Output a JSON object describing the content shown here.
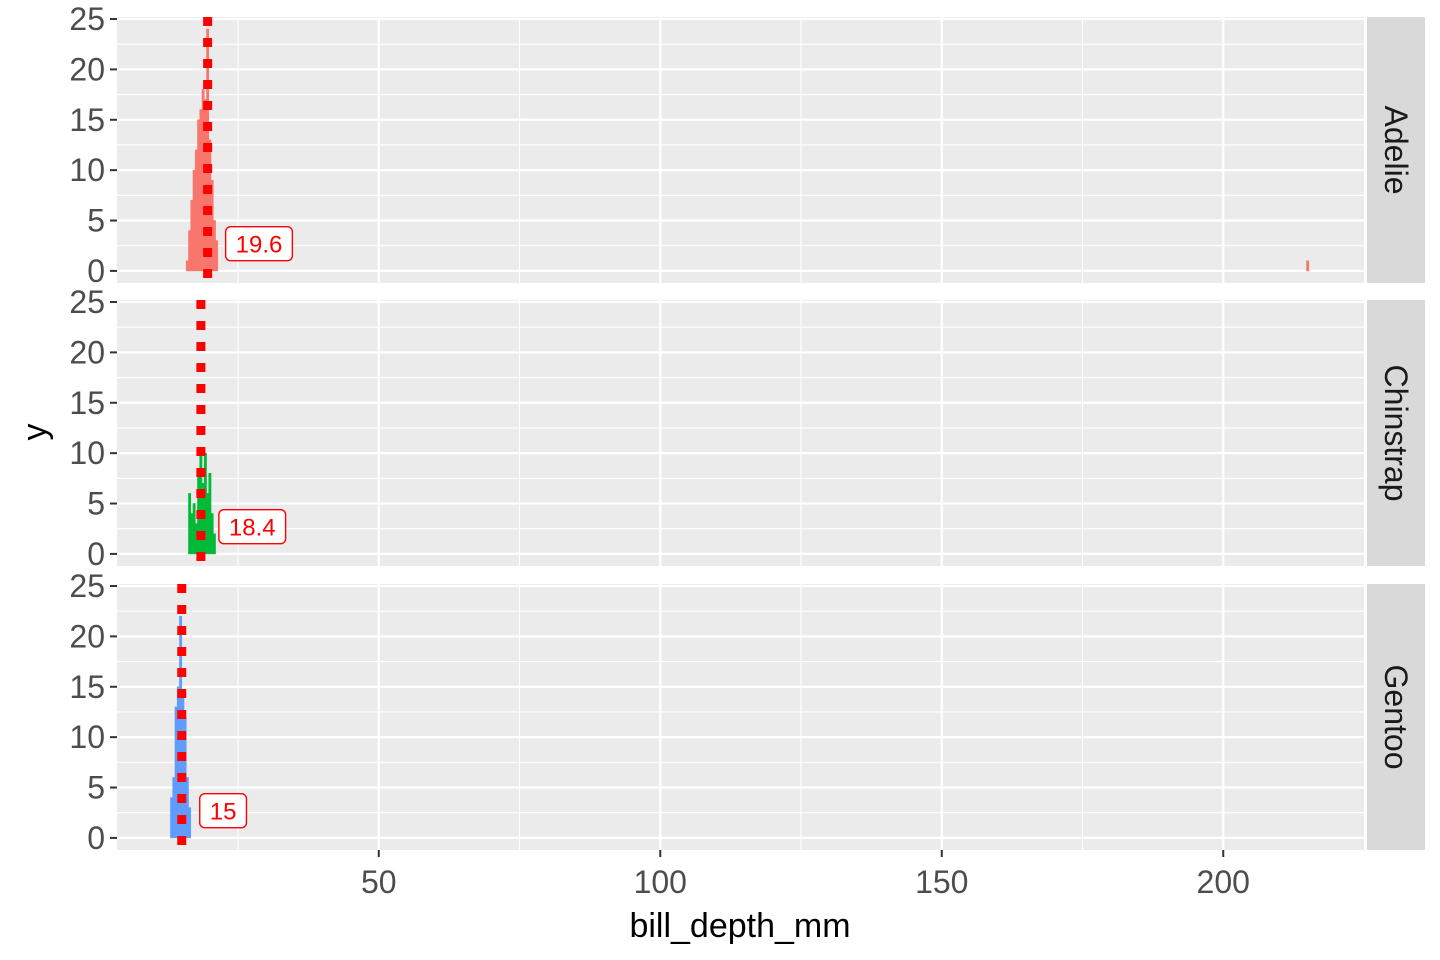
{
  "chart_data": {
    "type": "histogram",
    "xlabel": "bill_depth_mm",
    "ylabel": "y",
    "xlim": [
      3.5,
      225
    ],
    "ylim": [
      -1.2,
      25.2
    ],
    "x_ticks": [
      50,
      100,
      150,
      200
    ],
    "x_tick_labels": [
      "50",
      "100",
      "150",
      "200"
    ],
    "y_ticks": [
      0,
      5,
      10,
      15,
      20,
      25
    ],
    "y_tick_labels": [
      "0",
      "5",
      "10",
      "15",
      "20",
      "25"
    ],
    "grid": true,
    "bin_width": 0.4,
    "facets": [
      {
        "name": "Adelie",
        "color": "#F8766D",
        "bins": [
          {
            "x": 16.0,
            "count": 1
          },
          {
            "x": 16.4,
            "count": 4
          },
          {
            "x": 16.8,
            "count": 7
          },
          {
            "x": 17.2,
            "count": 10
          },
          {
            "x": 17.6,
            "count": 12
          },
          {
            "x": 18.0,
            "count": 15
          },
          {
            "x": 18.4,
            "count": 16
          },
          {
            "x": 18.8,
            "count": 18
          },
          {
            "x": 19.2,
            "count": 17
          },
          {
            "x": 19.6,
            "count": 24
          },
          {
            "x": 20.0,
            "count": 13
          },
          {
            "x": 20.4,
            "count": 9
          },
          {
            "x": 20.8,
            "count": 5
          },
          {
            "x": 21.2,
            "count": 3
          },
          {
            "x": 215.0,
            "count": 1
          }
        ],
        "vline": 19.6,
        "label": "19.6"
      },
      {
        "name": "Chinstrap",
        "color": "#00BA38",
        "bins": [
          {
            "x": 16.4,
            "count": 6
          },
          {
            "x": 16.8,
            "count": 4
          },
          {
            "x": 17.2,
            "count": 5
          },
          {
            "x": 17.6,
            "count": 3
          },
          {
            "x": 18.0,
            "count": 8
          },
          {
            "x": 18.4,
            "count": 10
          },
          {
            "x": 18.8,
            "count": 7
          },
          {
            "x": 19.2,
            "count": 10
          },
          {
            "x": 19.6,
            "count": 6
          },
          {
            "x": 20.0,
            "count": 8
          },
          {
            "x": 20.4,
            "count": 4
          },
          {
            "x": 20.8,
            "count": 2
          }
        ],
        "vline": 18.4,
        "label": "18.4"
      },
      {
        "name": "Gentoo",
        "color": "#619CFF",
        "bins": [
          {
            "x": 13.2,
            "count": 4
          },
          {
            "x": 13.6,
            "count": 6
          },
          {
            "x": 14.0,
            "count": 13
          },
          {
            "x": 14.4,
            "count": 15
          },
          {
            "x": 14.8,
            "count": 22
          },
          {
            "x": 15.2,
            "count": 14
          },
          {
            "x": 15.6,
            "count": 12
          },
          {
            "x": 16.0,
            "count": 6
          },
          {
            "x": 16.4,
            "count": 3
          }
        ],
        "vline": 15.0,
        "label": "15"
      }
    ]
  },
  "colors": {
    "panel_bg": "#ebebeb",
    "grid_major": "#ffffff",
    "strip_bg": "#d9d9d9",
    "vline": "#ff0000"
  }
}
